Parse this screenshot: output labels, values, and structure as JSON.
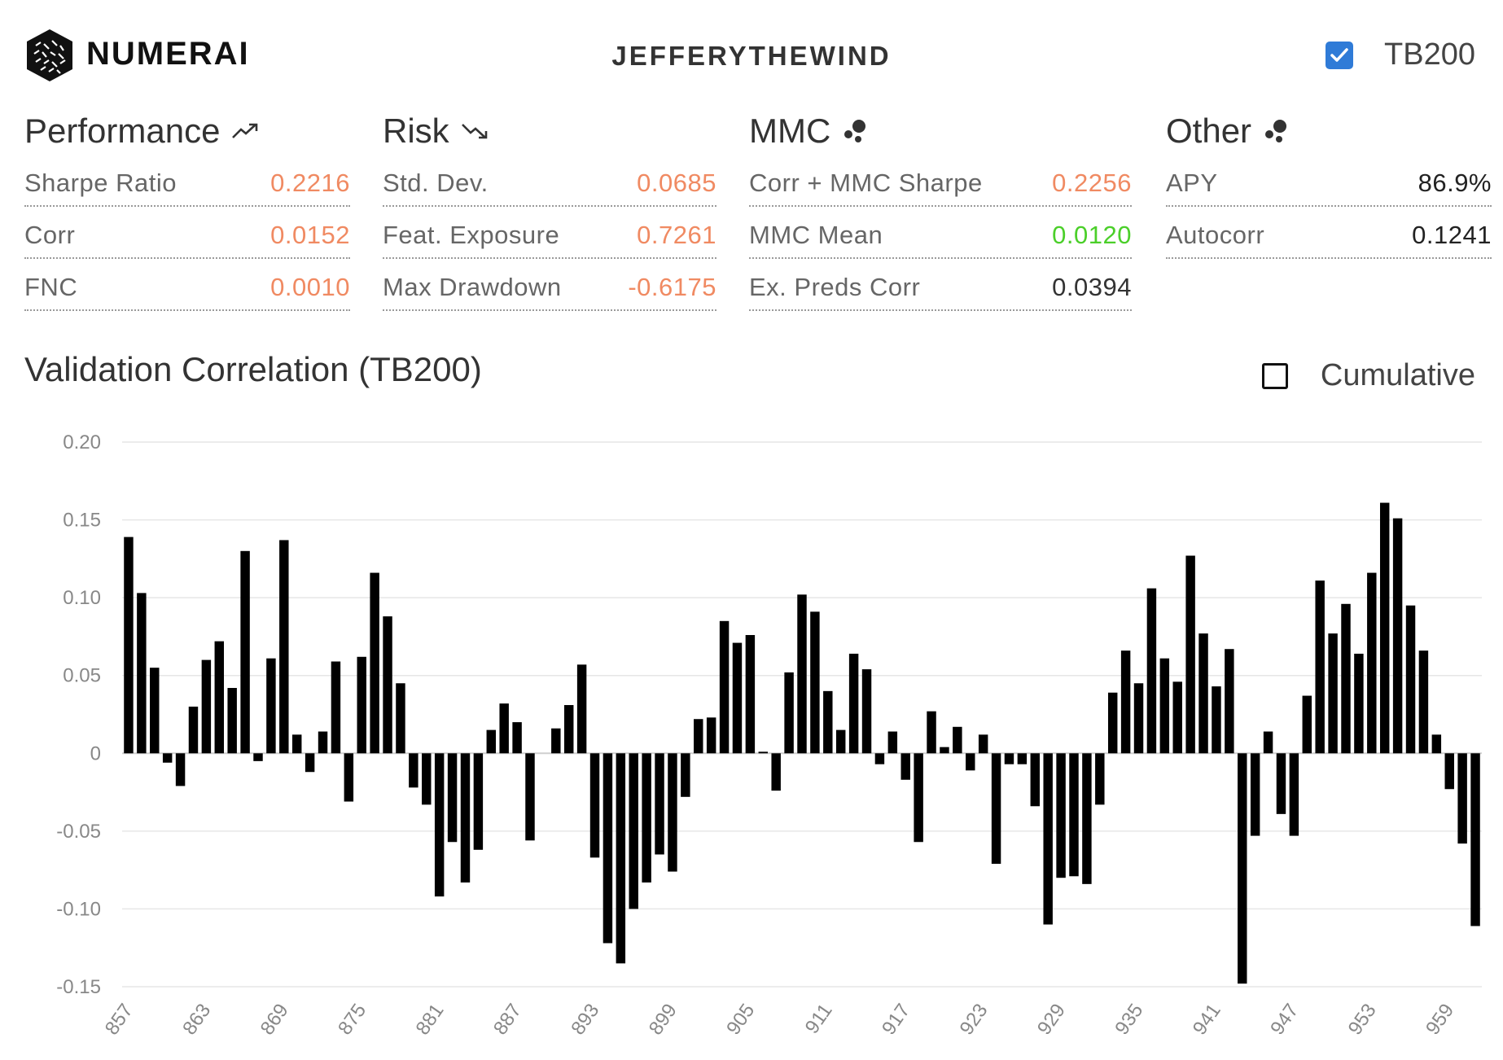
{
  "header": {
    "brand": "NUMERAI",
    "username": "JEFFERYTHEWIND",
    "tb_label": "TB200",
    "tb_checked": true
  },
  "groups": [
    {
      "title": "Performance",
      "icon": "trending-up-icon",
      "rows": [
        {
          "label": "Sharpe Ratio",
          "value": "0.2216",
          "color": "#f08a62"
        },
        {
          "label": "Corr",
          "value": "0.0152",
          "color": "#f08a62"
        },
        {
          "label": "FNC",
          "value": "0.0010",
          "color": "#f08a62"
        }
      ]
    },
    {
      "title": "Risk",
      "icon": "trending-down-icon",
      "rows": [
        {
          "label": "Std. Dev.",
          "value": "0.0685",
          "color": "#f08a62"
        },
        {
          "label": "Feat. Exposure",
          "value": "0.7261",
          "color": "#f08a62"
        },
        {
          "label": "Max Drawdown",
          "value": "-0.6175",
          "color": "#f08a62"
        }
      ]
    },
    {
      "title": "MMC",
      "icon": "bubbles-icon",
      "rows": [
        {
          "label": "Corr + MMC Sharpe",
          "value": "0.2256",
          "color": "#f08a62"
        },
        {
          "label": "MMC Mean",
          "value": "0.0120",
          "color": "#4bcf2a"
        },
        {
          "label": "Ex. Preds Corr",
          "value": "0.0394",
          "color": "#333333"
        }
      ]
    },
    {
      "title": "Other",
      "icon": "bubbles-icon",
      "rows": [
        {
          "label": "APY",
          "value": "86.9%",
          "color": "#222222"
        },
        {
          "label": "Autocorr",
          "value": "0.1241",
          "color": "#222222"
        }
      ]
    }
  ],
  "chart_section": {
    "title": "Validation Correlation (TB200)",
    "cumulative_label": "Cumulative",
    "cumulative_checked": false
  },
  "chart_data": {
    "type": "bar",
    "title": "Validation Correlation (TB200)",
    "xlabel": "",
    "ylabel": "",
    "ylim": [
      -0.15,
      0.2
    ],
    "y_ticks": [
      "0.20",
      "0.15",
      "0.10",
      "0.05",
      "0",
      "-0.05",
      "-0.10",
      "-0.15"
    ],
    "y_tick_values": [
      0.2,
      0.15,
      0.1,
      0.05,
      0,
      -0.05,
      -0.1,
      -0.15
    ],
    "x_tick_labels": [
      "857",
      "863",
      "869",
      "875",
      "881",
      "887",
      "893",
      "899",
      "905",
      "911",
      "917",
      "923",
      "929",
      "935",
      "941",
      "947",
      "953",
      "959"
    ],
    "x_start": 857,
    "grid": true,
    "bar_color": "#000000",
    "values": [
      0.139,
      0.103,
      0.055,
      -0.006,
      -0.021,
      0.03,
      0.06,
      0.072,
      0.042,
      0.13,
      -0.005,
      0.061,
      0.137,
      0.012,
      -0.012,
      0.014,
      0.059,
      -0.031,
      0.062,
      0.116,
      0.088,
      0.045,
      -0.022,
      -0.033,
      -0.092,
      -0.057,
      -0.083,
      -0.062,
      0.015,
      0.032,
      0.02,
      -0.056,
      0.0,
      0.016,
      0.031,
      0.057,
      -0.067,
      -0.122,
      -0.135,
      -0.1,
      -0.083,
      -0.065,
      -0.076,
      -0.028,
      0.022,
      0.023,
      0.085,
      0.071,
      0.076,
      0.001,
      -0.024,
      0.052,
      0.102,
      0.091,
      0.04,
      0.015,
      0.064,
      0.054,
      -0.007,
      0.014,
      -0.017,
      -0.057,
      0.027,
      0.004,
      0.017,
      -0.011,
      0.012,
      -0.071,
      -0.007,
      -0.007,
      -0.034,
      -0.11,
      -0.08,
      -0.079,
      -0.084,
      -0.033,
      0.039,
      0.066,
      0.045,
      0.106,
      0.061,
      0.046,
      0.127,
      0.077,
      0.043,
      0.067,
      -0.148,
      -0.053,
      0.014,
      -0.039,
      -0.053,
      0.037,
      0.111,
      0.077,
      0.096,
      0.064,
      0.116,
      0.161,
      0.151,
      0.095,
      0.066,
      0.012,
      -0.023,
      -0.058,
      -0.111
    ]
  }
}
